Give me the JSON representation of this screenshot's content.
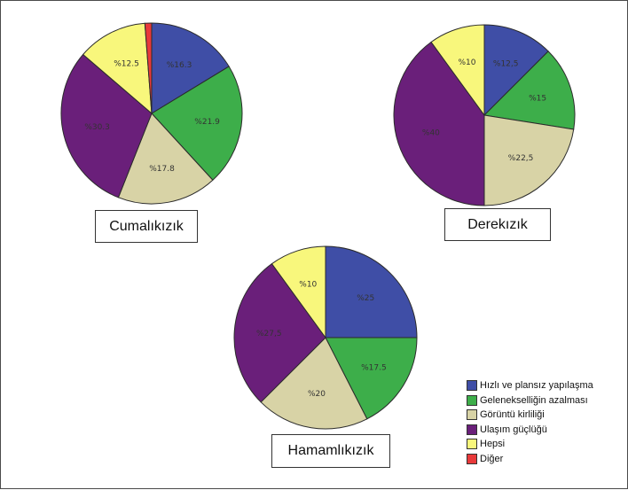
{
  "chart_data": {
    "type": "pie",
    "categories": [
      "Hızlı ve plansız yapılaşma",
      "Gelenekselliğin azalması",
      "Görüntü kirliliği",
      "Ulaşım güçlüğü",
      "Hepsi",
      "Diğer"
    ],
    "colors": [
      "#3f4ea6",
      "#3dae4a",
      "#d8d3a6",
      "#6a1f7a",
      "#f8f77c",
      "#e8393a"
    ],
    "charts": [
      {
        "title": "Cumalıkızık",
        "values": [
          16.3,
          21.9,
          17.8,
          30.3,
          12.5,
          1.2
        ],
        "labels": [
          "%16.3",
          "%21.9",
          "%17.8",
          "%30.3",
          "%12.5",
          ""
        ]
      },
      {
        "title": "Derekızık",
        "values": [
          12.5,
          15,
          22.5,
          40,
          10
        ],
        "labels": [
          "%12,5",
          "%15",
          "%22,5",
          "%40",
          "%10"
        ]
      },
      {
        "title": "Hamamlıkızık",
        "values": [
          25,
          17.5,
          20,
          27.5,
          10
        ],
        "labels": [
          "%25",
          "%17.5",
          "%20",
          "%27,5",
          "%10"
        ]
      }
    ],
    "legend_position": "bottom-right"
  }
}
